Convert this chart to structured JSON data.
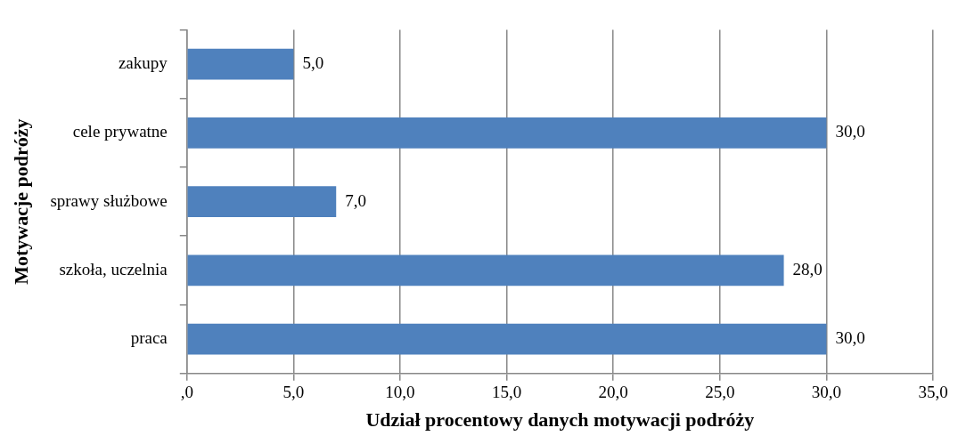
{
  "chart_data": {
    "type": "bar",
    "orientation": "horizontal",
    "xlabel": "Udział procentowy danych motywacji podróży",
    "ylabel": "Motywacje podróży",
    "categories": [
      "zakupy",
      "cele prywatne",
      "sprawy służbowe",
      "szkoła, uczelnia",
      "praca"
    ],
    "values": [
      5,
      30,
      7,
      28,
      30
    ],
    "value_labels": [
      "5,0",
      "30,0",
      "7,0",
      "28,0",
      "30,0"
    ],
    "color": "#4f81bd",
    "xlim": [
      0,
      35
    ],
    "xticks": [
      {
        "value": 0,
        "label": ",0"
      },
      {
        "value": 5,
        "label": "5,0"
      },
      {
        "value": 10,
        "label": "10,0"
      },
      {
        "value": 15,
        "label": "15,0"
      },
      {
        "value": 20,
        "label": "20,0"
      },
      {
        "value": 25,
        "label": "25,0"
      },
      {
        "value": 30,
        "label": "30,0"
      },
      {
        "value": 35,
        "label": "35,0"
      }
    ],
    "grid": "x",
    "legend": false
  }
}
